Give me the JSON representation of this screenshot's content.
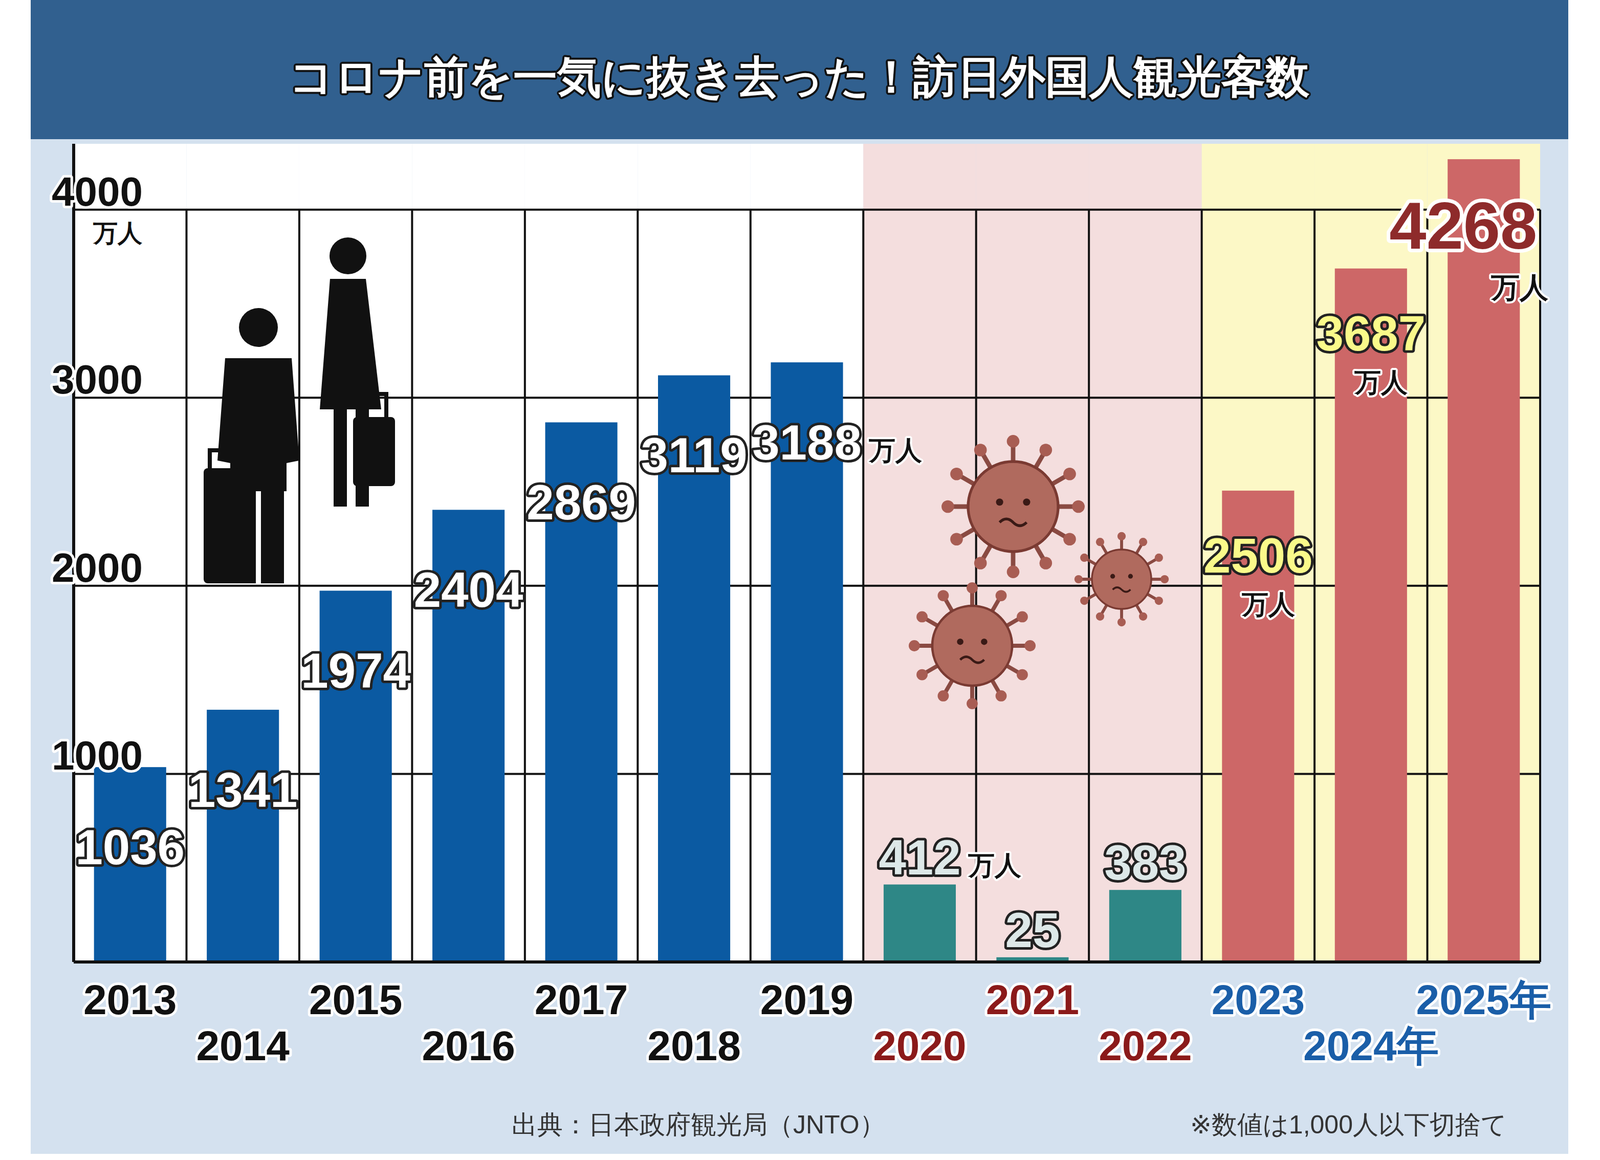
{
  "chart_data": {
    "type": "bar",
    "title": "コロナ前を一気に抜き去った！訪日外国人観光客数",
    "y_label": "万人",
    "categories": [
      "2013",
      "2014",
      "2015",
      "2016",
      "2017",
      "2018",
      "2019",
      "2020",
      "2021",
      "2022",
      "2023",
      "2024年",
      "2025年"
    ],
    "values": [
      1036,
      1341,
      1974,
      2404,
      2869,
      3119,
      3188,
      412,
      25,
      383,
      2506,
      3687,
      4268
    ],
    "value_labels": [
      "1036",
      "1341",
      "1974",
      "2404",
      "2869",
      "3119",
      "3188 万人",
      "412 万人",
      "25",
      "383",
      "2506 万人",
      "3687 万人",
      "4268 万人"
    ],
    "colors": [
      "#0b5aa2",
      "#0b5aa2",
      "#0b5aa2",
      "#0b5aa2",
      "#0b5aa2",
      "#0b5aa2",
      "#0b5aa2",
      "#2e8786",
      "#2e8786",
      "#2e8786",
      "#cd6767",
      "#cd6767",
      "#cd6767"
    ],
    "ylim": [
      0,
      4350
    ],
    "yticks": [
      1000,
      2000,
      3000,
      4000
    ],
    "grid": true,
    "data_labels": true,
    "source": "出典：日本政府観光局（JNTO）",
    "note": "※数値は1,000人以下切捨て"
  }
}
